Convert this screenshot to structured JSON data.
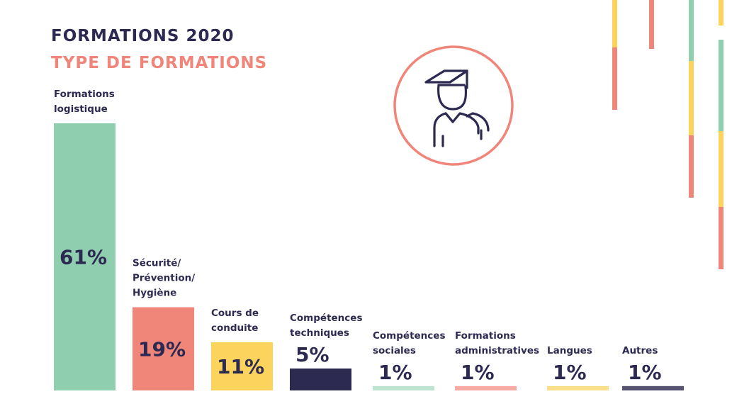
{
  "title": "FORMATIONS 2020",
  "subtitle": "TYPE DE FORMATIONS",
  "colors": {
    "navy": "#2d2a52",
    "coral": "#f0857a",
    "green": "#8fcfb0",
    "yellow": "#fbd35d"
  },
  "icon": "graduate-icon",
  "chart_data": {
    "type": "bar",
    "title": "TYPE DE FORMATIONS",
    "categories": [
      [
        "Formations",
        "logistique"
      ],
      [
        "Sécurité/",
        "Prévention/",
        "Hygiène"
      ],
      [
        "Cours de",
        "conduite"
      ],
      [
        "Compétences",
        "techniques"
      ],
      [
        "Compétences",
        "sociales"
      ],
      [
        "Formations",
        "administratives"
      ],
      [
        "Langues"
      ],
      [
        "Autres"
      ]
    ],
    "values": [
      61,
      19,
      11,
      5,
      1,
      1,
      1,
      1
    ],
    "value_labels": [
      "61%",
      "19%",
      "11%",
      "5%",
      "1%",
      "1%",
      "1%",
      "1%"
    ],
    "colors": [
      "#8fcfb0",
      "#f0857a",
      "#fbd35d",
      "#2d2a52",
      "#bfe3d1",
      "#f5aba3",
      "#fbe08c",
      "#55536f"
    ],
    "unit": "%",
    "ylim": [
      0,
      61
    ],
    "grid": false,
    "legend": "none"
  }
}
